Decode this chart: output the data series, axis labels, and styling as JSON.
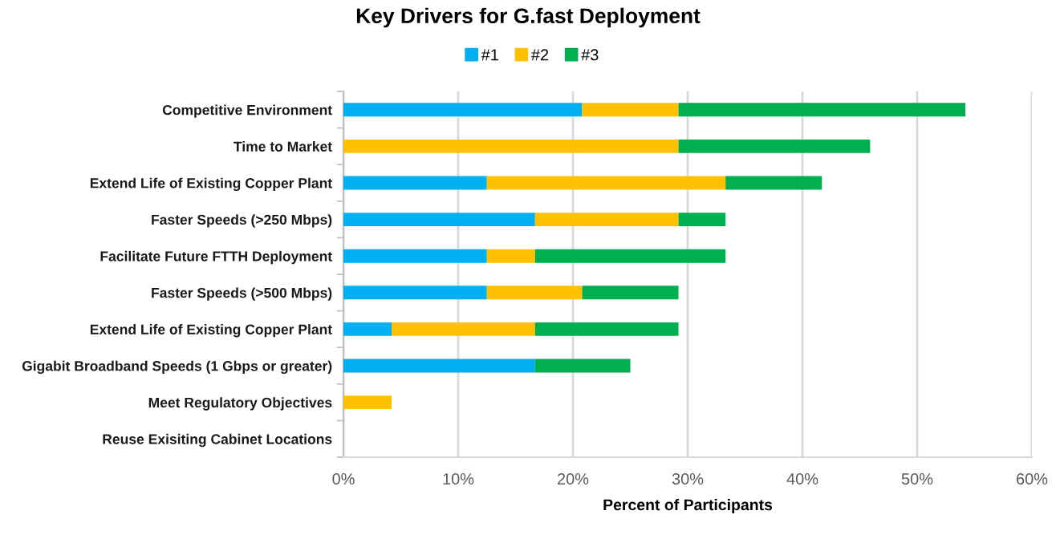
{
  "chart_data": {
    "type": "bar",
    "orientation": "horizontal",
    "stacked": true,
    "title": "Key Drivers for G.fast Deployment",
    "xlabel": "Percent of Participants",
    "categories": [
      "Competitive Environment",
      "Time to Market",
      "Extend Life of Existing Copper Plant",
      "Faster Speeds (>250 Mbps)",
      "Facilitate Future FTTH Deployment",
      "Faster Speeds (>500 Mbps)",
      "Extend Life of Existing Copper Plant",
      "Gigabit Broadband Speeds (1 Gbps or greater)",
      "Meet Regulatory Objectives",
      "Reuse Exisiting Cabinet Locations"
    ],
    "series": [
      {
        "name": "#1",
        "color": "#00b0f0",
        "values": [
          20.8,
          0,
          12.5,
          16.7,
          12.5,
          12.5,
          4.2,
          16.7,
          0,
          0
        ]
      },
      {
        "name": "#2",
        "color": "#ffc000",
        "values": [
          8.4,
          29.2,
          20.8,
          12.5,
          4.2,
          8.3,
          12.5,
          0,
          4.2,
          0
        ]
      },
      {
        "name": "#3",
        "color": "#00b050",
        "values": [
          25.0,
          16.7,
          8.4,
          4.1,
          16.6,
          8.4,
          12.5,
          8.3,
          0,
          0
        ]
      }
    ],
    "xlim": [
      0,
      60
    ],
    "xticks": [
      {
        "value": 0,
        "label": "0%"
      },
      {
        "value": 10,
        "label": "10%"
      },
      {
        "value": 20,
        "label": "20%"
      },
      {
        "value": 30,
        "label": "30%"
      },
      {
        "value": 40,
        "label": "40%"
      },
      {
        "value": 50,
        "label": "50%"
      },
      {
        "value": 60,
        "label": "60%"
      }
    ],
    "grid": "x",
    "legend": "top"
  }
}
